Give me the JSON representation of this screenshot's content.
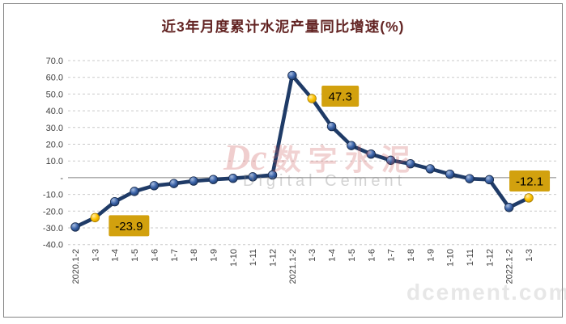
{
  "window": {
    "background": "#ffffff",
    "frame_border_color": "#848484"
  },
  "title": {
    "text": "近3年月度累计水泥产量同比增速(%)",
    "color": "#632423"
  },
  "watermark": {
    "logo_text": "Dc",
    "center_cn": "数字水泥",
    "center_en": "Digital Cement",
    "site": "dcement.com"
  },
  "colors": {
    "line": "#1F3B67",
    "marker_blue": "#3A62A8",
    "marker_gold": "#FFC400",
    "callout_bg": "#D2A10E",
    "callout_text": "#000000",
    "gridline": "#C9C9C9",
    "zero_line": "#808080",
    "tick_text": "#404040"
  },
  "chart_data": {
    "type": "line",
    "title": "近3年月度累计水泥产量同比增速(%)",
    "xlabel": "",
    "ylabel": "",
    "ylim": [
      -40,
      70
    ],
    "grid": "horizontal dashed, solid zero axis",
    "legend": "none",
    "y_ticks": [
      {
        "v": 70,
        "label": "70.0"
      },
      {
        "v": 60,
        "label": "60.0"
      },
      {
        "v": 50,
        "label": "50.0"
      },
      {
        "v": 40,
        "label": "40.0"
      },
      {
        "v": 30,
        "label": "30.0"
      },
      {
        "v": 20,
        "label": "20.0"
      },
      {
        "v": 10,
        "label": "10.0"
      },
      {
        "v": 0,
        "label": "-"
      },
      {
        "v": -10,
        "label": "-10.0"
      },
      {
        "v": -20,
        "label": "-20.0"
      },
      {
        "v": -30,
        "label": "-30.0"
      },
      {
        "v": -40,
        "label": "-40.0"
      }
    ],
    "categories": [
      "2020.1-2",
      "1-3",
      "1-4",
      "1-5",
      "1-6",
      "1-7",
      "1-8",
      "1-9",
      "1-10",
      "1-11",
      "1-12",
      "2021.1-2",
      "1-3",
      "1-4",
      "1-5",
      "1-6",
      "1-7",
      "1-8",
      "1-9",
      "1-10",
      "1-11",
      "1-12",
      "2022.1-2",
      "1-3"
    ],
    "values": [
      -29.5,
      -23.9,
      -14.4,
      -8.2,
      -4.8,
      -3.5,
      -2.0,
      -1.1,
      -0.4,
      0.5,
      1.6,
      61.1,
      47.3,
      30.6,
      19.2,
      14.1,
      10.4,
      8.3,
      5.3,
      2.1,
      -0.6,
      -1.2,
      -17.8,
      -12.1
    ],
    "highlighted_points": [
      {
        "index": 1,
        "category": "2020.1-3",
        "value": -23.9,
        "label": "-23.9"
      },
      {
        "index": 12,
        "category": "2021.1-3",
        "value": 47.3,
        "label": "47.3"
      },
      {
        "index": 23,
        "category": "2022.1-3",
        "value": -12.1,
        "label": "-12.1"
      }
    ]
  }
}
